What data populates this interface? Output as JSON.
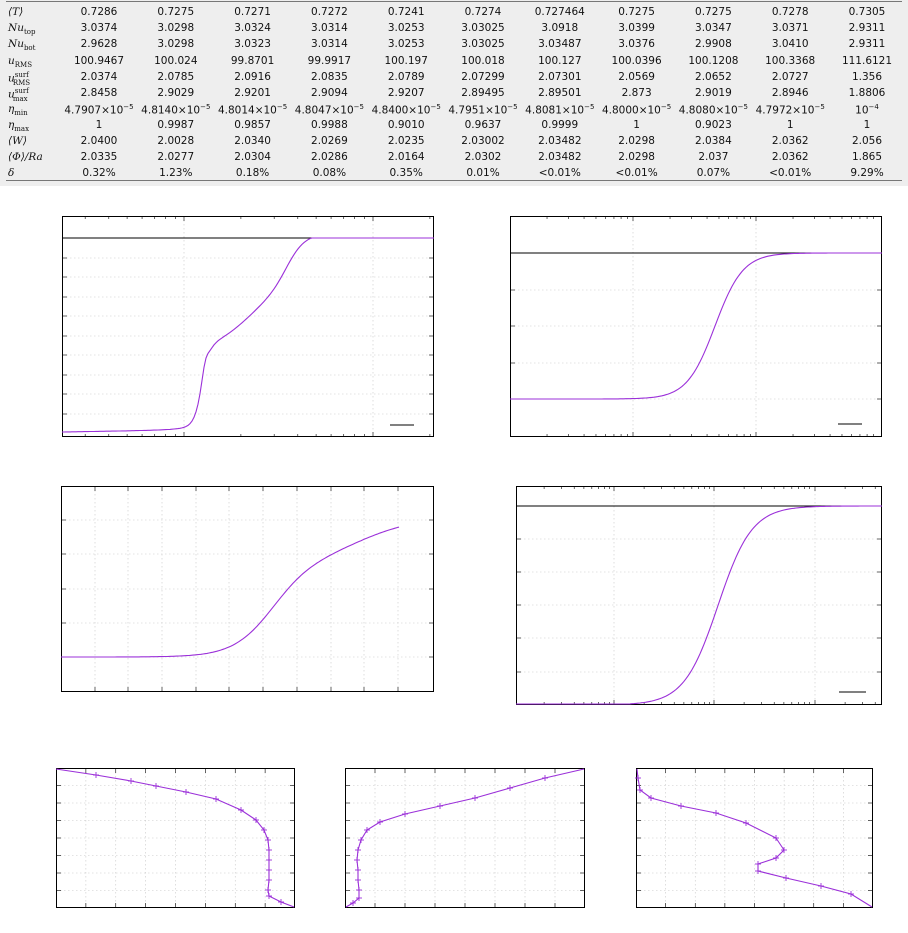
{
  "table": {
    "rows": [
      {
        "label_main": "⟨T⟩",
        "label_sub": "",
        "label_sup": "",
        "values": [
          "0.7286",
          "0.7275",
          "0.7271",
          "0.7272",
          "0.7241",
          "0.7274",
          "0.727464",
          "0.7275",
          "0.7275",
          "0.7278",
          "0.7305"
        ]
      },
      {
        "label_main": "Nu",
        "label_sub": "top",
        "label_sup": "",
        "values": [
          "3.0374",
          "3.0298",
          "3.0324",
          "3.0314",
          "3.0253",
          "3.03025",
          "3.0918",
          "3.0399",
          "3.0347",
          "3.0371",
          "2.9311"
        ]
      },
      {
        "label_main": "Nu",
        "label_sub": "bot",
        "label_sup": "",
        "values": [
          "2.9628",
          "3.0298",
          "3.0323",
          "3.0314",
          "3.0253",
          "3.03025",
          "3.03487",
          "3.0376",
          "2.9908",
          "3.0410",
          "2.9311"
        ]
      },
      {
        "label_main": "u",
        "label_sub": "RMS",
        "label_sup": "",
        "values": [
          "100.9467",
          "100.024",
          "99.8701",
          "99.9917",
          "100.197",
          "100.018",
          "100.127",
          "100.0396",
          "100.1208",
          "100.3368",
          "111.6121"
        ]
      },
      {
        "label_main": "u",
        "label_sub": "RMS",
        "label_sup": "surf",
        "values": [
          "2.0374",
          "2.0785",
          "2.0916",
          "2.0835",
          "2.0789",
          "2.07299",
          "2.07301",
          "2.0569",
          "2.0652",
          "2.0727",
          "1.356"
        ]
      },
      {
        "label_main": "u",
        "label_sub": "max",
        "label_sup": "surf",
        "values": [
          "2.8458",
          "2.9029",
          "2.9201",
          "2.9094",
          "2.9207",
          "2.89495",
          "2.89501",
          "2.873",
          "2.9019",
          "2.8946",
          "1.8806"
        ]
      },
      {
        "label_main": "η",
        "label_sub": "min",
        "label_sup": "",
        "values": [
          "4.7907×10",
          "4.8140×10",
          "4.8014×10",
          "4.8047×10",
          "4.8400×10",
          "4.7951×10",
          "4.8081×10",
          "4.8000×10",
          "4.8080×10",
          "4.7972×10",
          "10"
        ],
        "exponents": [
          "−5",
          "−5",
          "−5",
          "−5",
          "−5",
          "−5",
          "−5",
          "−5",
          "−5",
          "−5",
          "−4"
        ]
      },
      {
        "label_main": "η",
        "label_sub": "max",
        "label_sup": "",
        "values": [
          "1",
          "0.9987",
          "0.9857",
          "0.9988",
          "0.9010",
          "0.9637",
          "0.9999",
          "1",
          "0.9023",
          "1",
          "1"
        ]
      },
      {
        "label_main": "⟨W⟩",
        "label_sub": "",
        "label_sup": "",
        "values": [
          "2.0400",
          "2.0028",
          "2.0340",
          "2.0269",
          "2.0235",
          "2.03002",
          "2.03482",
          "2.0298",
          "2.0384",
          "2.0362",
          "2.056"
        ]
      },
      {
        "label_main": "⟨Φ⟩/Ra",
        "label_sub": "",
        "label_sup": "",
        "values": [
          "2.0335",
          "2.0277",
          "2.0304",
          "2.0286",
          "2.0164",
          "2.0302",
          "2.03482",
          "2.0298",
          "2.037",
          "2.0362",
          "1.865"
        ]
      },
      {
        "label_main": "δ",
        "label_sub": "",
        "label_sup": "",
        "values": [
          "0.32%",
          "1.23%",
          "0.18%",
          "0.08%",
          "0.35%",
          "0.01%",
          "<0.01%",
          "<0.01%",
          "0.07%",
          "<0.01%",
          "9.29%"
        ]
      }
    ]
  },
  "chart_data": [
    {
      "type": "line",
      "panel": "top-left",
      "x_scale": "log",
      "legend": "bottom-right",
      "series": [
        {
          "values": [
            0.01,
            0.02,
            0.04,
            0.1,
            0.45,
            0.42,
            0.56,
            0.7,
            0.87,
            1.0,
            1.0
          ]
        },
        {
          "role": "reference",
          "values": [
            1.0
          ]
        }
      ]
    },
    {
      "type": "line",
      "panel": "top-right",
      "x_scale": "log",
      "legend": "bottom-right",
      "series": [
        {
          "values": [
            0.0,
            0.0,
            0.05,
            0.5,
            0.92,
            1.0,
            1.0
          ]
        },
        {
          "role": "reference",
          "values": [
            1.0
          ]
        }
      ]
    },
    {
      "type": "line",
      "panel": "middle-left",
      "x_scale": "linear",
      "series": [
        {
          "values": [
            0.0,
            0.0,
            0.0,
            0.05,
            0.45,
            0.75,
            0.85,
            0.95
          ]
        }
      ]
    },
    {
      "type": "line",
      "panel": "middle-right",
      "x_scale": "log",
      "legend": "bottom-right",
      "series": [
        {
          "values": [
            0.0,
            0.0,
            0.05,
            0.5,
            0.95,
            1.0,
            1.0
          ]
        },
        {
          "role": "reference",
          "values": [
            1.0
          ]
        }
      ]
    },
    {
      "type": "line",
      "panel": "bottom-1",
      "markers": "plus",
      "series": [
        {
          "values": [
            0,
            0.1,
            0.2,
            0.3,
            0.4,
            0.5,
            0.6,
            0.7,
            0.8,
            0.9,
            1.0
          ]
        }
      ]
    },
    {
      "type": "line",
      "panel": "bottom-2",
      "markers": "plus",
      "series": [
        {
          "values": [
            1.0,
            0.9,
            0.8,
            0.7,
            0.6,
            0.5,
            0.4,
            0.3,
            0.2,
            0.1,
            0
          ]
        }
      ]
    },
    {
      "type": "line",
      "panel": "bottom-3",
      "markers": "plus",
      "series": [
        {
          "values": [
            0,
            0.1,
            0.3,
            0.6,
            0.5,
            0.2,
            0.6,
            0.9,
            1.0
          ]
        }
      ]
    }
  ],
  "colors": {
    "curve": "#9b30d9",
    "reference": "#000000",
    "table_bg": "#eeeeee"
  }
}
